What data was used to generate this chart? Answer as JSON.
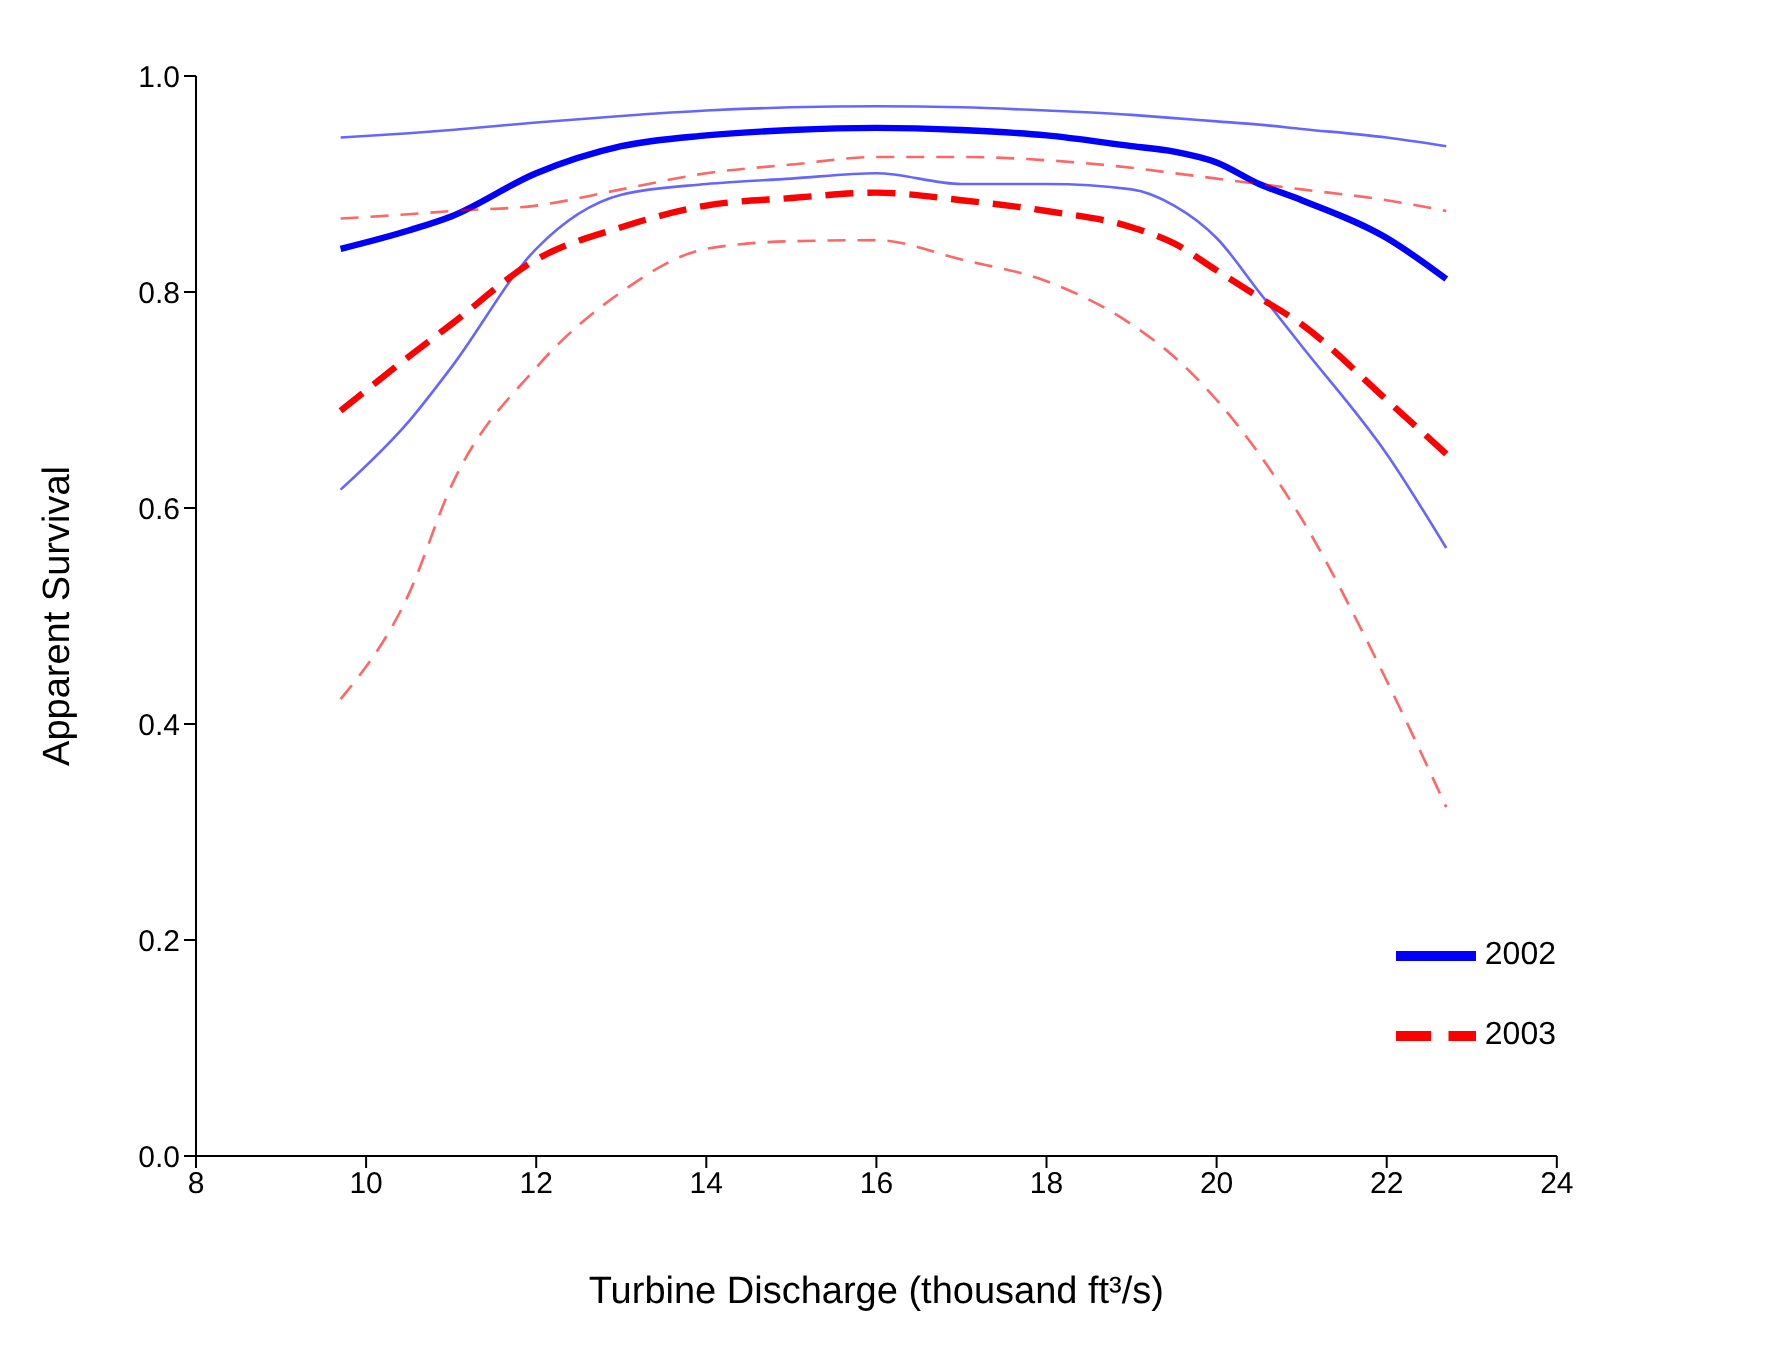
{
  "chart_data": {
    "type": "line",
    "xlabel": "Turbine Discharge (thousand ft³/s)",
    "ylabel": "Apparent Survival",
    "x": [
      9.7,
      10.5,
      11,
      12,
      13,
      14,
      15,
      16,
      17,
      18,
      19,
      19.5,
      20,
      20.5,
      21,
      22,
      22.7
    ],
    "series": [
      {
        "color": "#0000ff",
        "line_style": "solid",
        "values": [
          0.943,
          0.947,
          0.95,
          0.957,
          0.963,
          0.968,
          0.971,
          0.972,
          0.971,
          0.968,
          0.964,
          0.961,
          0.958,
          0.955,
          0.951,
          0.943,
          0.935
        ]
      },
      {
        "name": "2002",
        "color": "#0000ff",
        "line_style": "solid",
        "values": [
          0.84,
          0.857,
          0.87,
          0.91,
          0.935,
          0.945,
          0.95,
          0.952,
          0.95,
          0.945,
          0.935,
          0.93,
          0.92,
          0.9,
          0.885,
          0.85,
          0.812
        ]
      },
      {
        "color": "#0000ff",
        "line_style": "solid",
        "values": [
          0.617,
          0.68,
          0.73,
          0.84,
          0.89,
          0.9,
          0.905,
          0.91,
          0.9,
          0.9,
          0.895,
          0.88,
          0.85,
          0.8,
          0.75,
          0.65,
          0.563
        ]
      },
      {
        "color": "#ff0000",
        "line_style": "dashed",
        "values": [
          0.868,
          0.872,
          0.875,
          0.88,
          0.895,
          0.91,
          0.918,
          0.925,
          0.925,
          0.922,
          0.915,
          0.91,
          0.905,
          0.9,
          0.895,
          0.885,
          0.875
        ]
      },
      {
        "name": "2003",
        "color": "#ff0000",
        "line_style": "dashed",
        "values": [
          0.69,
          0.74,
          0.77,
          0.83,
          0.86,
          0.88,
          0.887,
          0.892,
          0.885,
          0.875,
          0.86,
          0.845,
          0.82,
          0.795,
          0.77,
          0.7,
          0.65
        ]
      },
      {
        "color": "#ff0000",
        "line_style": "dashed",
        "values": [
          0.423,
          0.52,
          0.62,
          0.73,
          0.8,
          0.84,
          0.847,
          0.848,
          0.83,
          0.81,
          0.77,
          0.74,
          0.7,
          0.65,
          0.59,
          0.44,
          0.323
        ]
      }
    ],
    "xlim": [
      8,
      24
    ],
    "xticks": [
      8,
      10,
      12,
      14,
      16,
      18,
      20,
      22,
      24
    ],
    "ylim": [
      0,
      1
    ],
    "yticks": [
      {
        "value": 0,
        "label": "0.0"
      },
      {
        "value": 0.2,
        "label": "0.2"
      },
      {
        "value": 0.4,
        "label": "0.4"
      },
      {
        "value": 0.6,
        "label": "0.6"
      },
      {
        "value": 0.8,
        "label": "0.8"
      },
      {
        "value": 1,
        "label": "1.0"
      }
    ],
    "grid": false,
    "legend": "bottom right",
    "marker": "none"
  }
}
